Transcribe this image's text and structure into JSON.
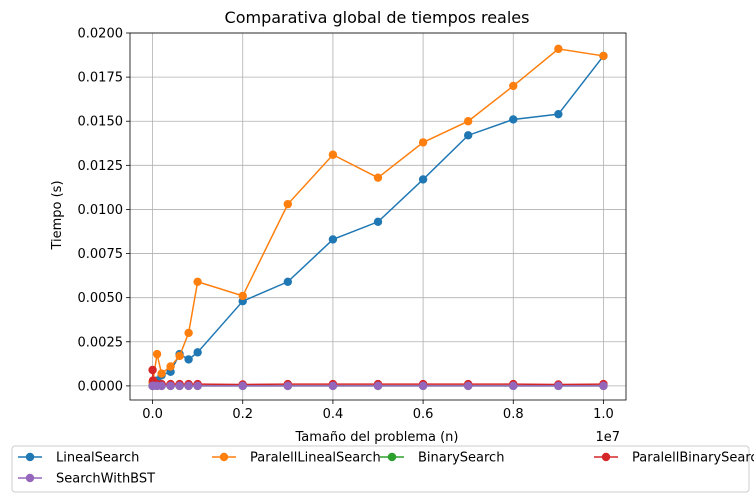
{
  "chart_data": {
    "type": "line",
    "title": "Comparativa global de tiempos reales",
    "xlabel": "Tamaño del problema (n)",
    "ylabel": "Tiempo (s)",
    "x_offset_label": "1e7",
    "xlim": [
      -500000,
      10500000
    ],
    "ylim": [
      -0.0008,
      0.02
    ],
    "x_ticks": [
      0,
      2000000,
      4000000,
      6000000,
      8000000,
      10000000
    ],
    "x_tick_labels": [
      "0.0",
      "0.2",
      "0.4",
      "0.6",
      "0.8",
      "1.0"
    ],
    "y_ticks": [
      0.0,
      0.0025,
      0.005,
      0.0075,
      0.01,
      0.0125,
      0.015,
      0.0175,
      0.02
    ],
    "y_tick_labels": [
      "0.0000",
      "0.0025",
      "0.0050",
      "0.0075",
      "0.0100",
      "0.0125",
      "0.0150",
      "0.0175",
      "0.0200"
    ],
    "grid": true,
    "legend_placement": "below",
    "x": [
      1000,
      10000,
      100000,
      200000,
      400000,
      600000,
      800000,
      1000000,
      2000000,
      3000000,
      4000000,
      5000000,
      6000000,
      7000000,
      8000000,
      9000000,
      10000000
    ],
    "series": [
      {
        "name": "LinealSearch",
        "color": "#1f77b4",
        "values": [
          0.0,
          0.0001,
          0.0003,
          0.0006,
          0.0008,
          0.0018,
          0.0015,
          0.0019,
          0.0048,
          0.0059,
          0.0083,
          0.0093,
          0.0117,
          0.0142,
          0.0151,
          0.0154,
          0.0187
        ]
      },
      {
        "name": "ParalellLinealSearch",
        "color": "#ff7f0e",
        "values": [
          0.0002,
          0.0003,
          0.0018,
          0.0007,
          0.0011,
          0.0017,
          0.003,
          0.0059,
          0.0051,
          0.0103,
          0.0131,
          0.0118,
          0.0138,
          0.015,
          0.017,
          0.0191,
          0.0187
        ]
      },
      {
        "name": "BinarySearch",
        "color": "#2ca02c",
        "values": [
          0.0,
          0.0,
          0.0,
          0.0,
          0.0,
          0.0,
          0.0,
          0.0,
          0.0,
          0.0,
          0.0,
          0.0,
          0.0,
          0.0,
          0.0,
          0.0,
          0.0
        ]
      },
      {
        "name": "ParalellBinarySearch",
        "color": "#d62728",
        "values": [
          0.0009,
          0.0003,
          0.0001,
          0.0001,
          0.0001,
          0.0001,
          0.0001,
          0.0001,
          8e-05,
          0.0001,
          0.0001,
          0.0001,
          0.0001,
          0.0001,
          0.0001,
          8e-05,
          0.0001
        ]
      },
      {
        "name": "SearchWithBST",
        "color": "#9467bd",
        "values": [
          0.0,
          0.0,
          0.0,
          0.0,
          0.0,
          0.0,
          0.0,
          0.0,
          0.0,
          0.0,
          0.0,
          0.0,
          0.0,
          0.0,
          0.0,
          0.0,
          0.0
        ]
      }
    ]
  }
}
